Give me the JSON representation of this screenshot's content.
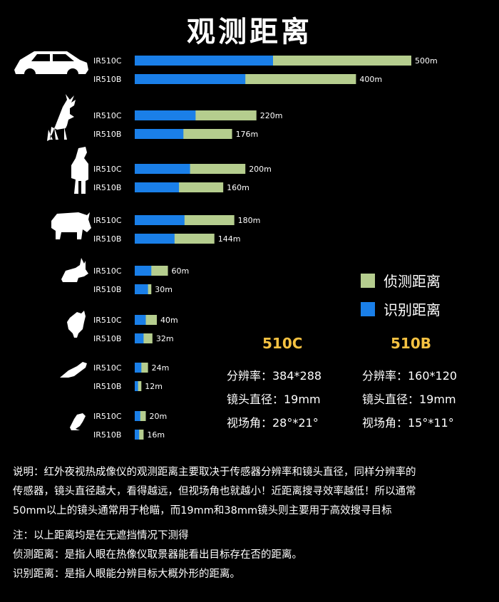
{
  "title": "观测距离",
  "chart_data": {
    "type": "bar",
    "orientation": "horizontal",
    "groups": [
      {
        "icon": "car-icon",
        "rows": [
          {
            "label": "IR510C",
            "recognition": 250,
            "detection": 500,
            "value_label": "500m"
          },
          {
            "label": "IR510B",
            "recognition": 200,
            "detection": 400,
            "value_label": "400m"
          }
        ]
      },
      {
        "icon": "deer-icon",
        "rows": [
          {
            "label": "IR510C",
            "recognition": 110,
            "detection": 220,
            "value_label": "220m"
          },
          {
            "label": "IR510B",
            "recognition": 88,
            "detection": 176,
            "value_label": "176m"
          }
        ]
      },
      {
        "icon": "person-icon",
        "rows": [
          {
            "label": "IR510C",
            "recognition": 100,
            "detection": 200,
            "value_label": "200m"
          },
          {
            "label": "IR510B",
            "recognition": 80,
            "detection": 160,
            "value_label": "160m"
          }
        ]
      },
      {
        "icon": "boar-icon",
        "rows": [
          {
            "label": "IR510C",
            "recognition": 90,
            "detection": 180,
            "value_label": "180m"
          },
          {
            "label": "IR510B",
            "recognition": 72,
            "detection": 144,
            "value_label": "144m"
          }
        ]
      },
      {
        "icon": "rabbit-icon",
        "rows": [
          {
            "label": "IR510C",
            "recognition": 30,
            "detection": 60,
            "value_label": "60m"
          },
          {
            "label": "IR510B",
            "recognition": 24,
            "detection": 30,
            "value_label": "30m"
          }
        ]
      },
      {
        "icon": "chicken-icon",
        "rows": [
          {
            "label": "IR510C",
            "recognition": 20,
            "detection": 40,
            "value_label": "40m"
          },
          {
            "label": "IR510B",
            "recognition": 16,
            "detection": 32,
            "value_label": "32m"
          }
        ]
      },
      {
        "icon": "parrot-icon",
        "rows": [
          {
            "label": "IR510C",
            "recognition": 12,
            "detection": 24,
            "value_label": "24m"
          },
          {
            "label": "IR510B",
            "recognition": 6,
            "detection": 12,
            "value_label": "12m"
          }
        ]
      },
      {
        "icon": "sparrow-icon",
        "rows": [
          {
            "label": "IR510C",
            "recognition": 10,
            "detection": 20,
            "value_label": "20m"
          },
          {
            "label": "IR510B",
            "recognition": 8,
            "detection": 16,
            "value_label": "16m"
          }
        ]
      }
    ],
    "legend": [
      {
        "name": "侦测距离",
        "color": "#b5cd8e"
      },
      {
        "name": "识别距离",
        "color": "#1a7fe8"
      }
    ],
    "legend_position": "right"
  },
  "specs": {
    "c": {
      "model": "510C",
      "resolution": "分辨率：384*288",
      "lens": "镜头直径：19mm",
      "fov": "视场角：28°*21°"
    },
    "b": {
      "model": "510B",
      "resolution": "分辨率：160*120",
      "lens": "镜头直径：19mm",
      "fov": "视场角：15°*11°"
    }
  },
  "notes": {
    "line1": "说明：红外夜视热成像仪的观测距离主要取决于传感器分辨率和镜头直径，同样分辨率的",
    "line2": "传感器，镜头直径越大，看得越远，但视场角也就越小！近距离搜寻效率越低！所以通常",
    "line3": "50mm以上的镜头通常用于枪瞄，而19mm和38mm镜头则主要用于高效搜寻目标",
    "note": "注：以上距离均是在无遮挡情况下测得",
    "detect": "侦测距离：是指人眼在热像仪取景器能看出目标存在否的距离。",
    "recog": "识别距离：是指人眼能分辨目标大概外形的距离。"
  }
}
